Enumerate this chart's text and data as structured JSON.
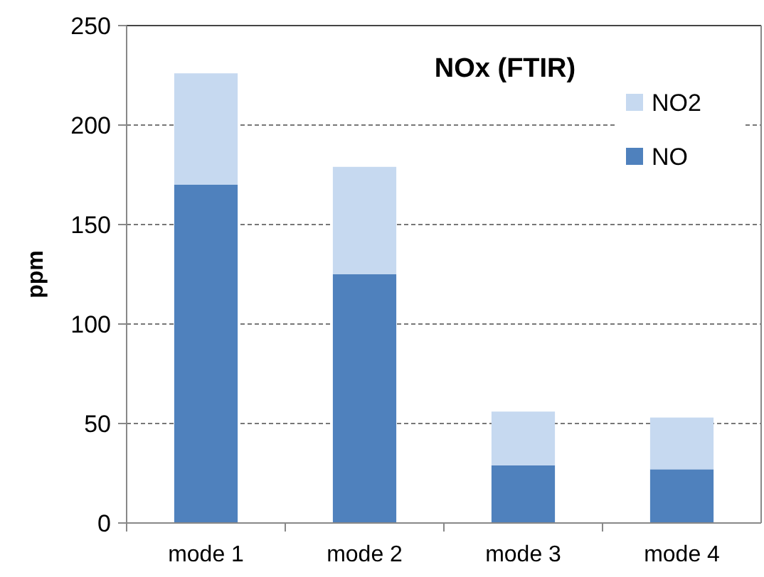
{
  "chart_data": {
    "type": "bar",
    "title": "NOx (FTIR)",
    "ylabel": "ppm",
    "categories": [
      "mode 1",
      "mode 2",
      "mode 3",
      "mode 4"
    ],
    "stacked": true,
    "series": [
      {
        "name": "NO",
        "color": "#4f81bd",
        "values": [
          170,
          125,
          29,
          27
        ]
      },
      {
        "name": "NO2",
        "color": "#c6d9f0",
        "values": [
          56,
          54,
          27,
          26
        ]
      }
    ],
    "ylim": [
      0,
      250
    ],
    "yticks": [
      0,
      50,
      100,
      150,
      200,
      250
    ],
    "grid": "y",
    "legend": "top right"
  }
}
